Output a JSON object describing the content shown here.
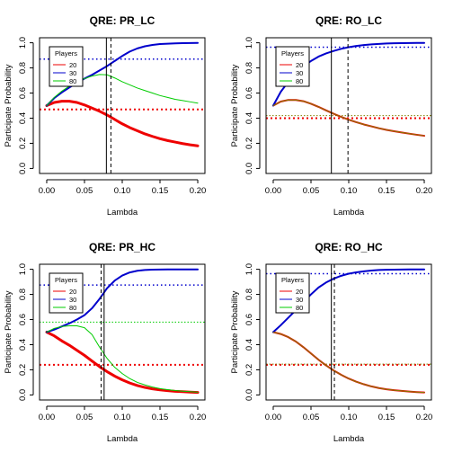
{
  "chart_data": [
    {
      "type": "line",
      "title": "QRE: PR_LC",
      "xlabel": "Lambda",
      "ylabel": "Participate Probability",
      "xlim": [
        -0.0095,
        0.2095
      ],
      "ylim": [
        -0.04,
        1.04
      ],
      "xticks": [
        "0.00",
        "0.05",
        "0.10",
        "0.15",
        "0.20"
      ],
      "yticks": [
        "0.0",
        "0.2",
        "0.4",
        "0.6",
        "0.8",
        "1.0"
      ],
      "legend": {
        "title": "Players",
        "position": "top-left",
        "entries": [
          {
            "label": "20",
            "color": "#ee0000"
          },
          {
            "label": "30",
            "color": "#0000cc"
          },
          {
            "label": "80",
            "color": "#00cc00"
          }
        ]
      },
      "series": [
        {
          "name": "20",
          "color": "#ee0000",
          "width": 3,
          "x": [
            0,
            0.01,
            0.02,
            0.03,
            0.04,
            0.05,
            0.06,
            0.07,
            0.08,
            0.09,
            0.1,
            0.11,
            0.12,
            0.13,
            0.14,
            0.15,
            0.16,
            0.17,
            0.18,
            0.19,
            0.2
          ],
          "y": [
            0.5,
            0.525,
            0.535,
            0.535,
            0.525,
            0.505,
            0.48,
            0.455,
            0.425,
            0.39,
            0.355,
            0.325,
            0.3,
            0.275,
            0.255,
            0.237,
            0.222,
            0.21,
            0.198,
            0.188,
            0.18
          ]
        },
        {
          "name": "30",
          "color": "#0000cc",
          "width": 2,
          "x": [
            0,
            0.01,
            0.02,
            0.03,
            0.04,
            0.05,
            0.06,
            0.07,
            0.08,
            0.09,
            0.1,
            0.11,
            0.12,
            0.13,
            0.14,
            0.15,
            0.16,
            0.17,
            0.18,
            0.19,
            0.2
          ],
          "y": [
            0.5,
            0.56,
            0.605,
            0.645,
            0.68,
            0.715,
            0.745,
            0.78,
            0.815,
            0.855,
            0.895,
            0.93,
            0.955,
            0.972,
            0.983,
            0.99,
            0.993,
            0.995,
            0.997,
            0.998,
            0.999
          ]
        },
        {
          "name": "80",
          "color": "#00cc00",
          "width": 1,
          "x": [
            0,
            0.01,
            0.02,
            0.03,
            0.04,
            0.05,
            0.06,
            0.07,
            0.08,
            0.09,
            0.1,
            0.11,
            0.12,
            0.13,
            0.14,
            0.15,
            0.16,
            0.17,
            0.18,
            0.19,
            0.2
          ],
          "y": [
            0.5,
            0.565,
            0.615,
            0.655,
            0.69,
            0.715,
            0.735,
            0.748,
            0.745,
            0.72,
            0.69,
            0.665,
            0.64,
            0.62,
            0.6,
            0.58,
            0.565,
            0.55,
            0.54,
            0.53,
            0.52
          ]
        }
      ],
      "hlines": [
        {
          "y": 0.47,
          "color": "#ee0000",
          "width": 2,
          "dash": "2,3"
        },
        {
          "y": 0.87,
          "color": "#0000cc",
          "width": 1.5,
          "dash": "1.5,3"
        }
      ],
      "vlines": [
        {
          "x": 0.079,
          "color": "#000000",
          "width": 1,
          "dash": ""
        },
        {
          "x": 0.085,
          "color": "#000000",
          "width": 1,
          "dash": "4,3"
        }
      ]
    },
    {
      "type": "line",
      "title": "QRE: RO_LC",
      "xlabel": "Lambda",
      "ylabel": "Participate Probability",
      "xlim": [
        -0.0095,
        0.2095
      ],
      "ylim": [
        -0.04,
        1.04
      ],
      "xticks": [
        "0.00",
        "0.05",
        "0.10",
        "0.15",
        "0.20"
      ],
      "yticks": [
        "0.0",
        "0.2",
        "0.4",
        "0.6",
        "0.8",
        "1.0"
      ],
      "legend": {
        "title": "Players",
        "position": "top-left",
        "entries": [
          {
            "label": "20",
            "color": "#ee0000"
          },
          {
            "label": "30",
            "color": "#0000cc"
          },
          {
            "label": "80",
            "color": "#00cc00"
          }
        ]
      },
      "series": [
        {
          "name": "20",
          "color": "#ee0000",
          "width": 2,
          "x": [
            0,
            0.01,
            0.02,
            0.03,
            0.04,
            0.05,
            0.06,
            0.07,
            0.08,
            0.09,
            0.1,
            0.11,
            0.12,
            0.13,
            0.14,
            0.15,
            0.16,
            0.17,
            0.18,
            0.19,
            0.2
          ],
          "y": [
            0.5,
            0.532,
            0.545,
            0.545,
            0.535,
            0.515,
            0.49,
            0.462,
            0.435,
            0.41,
            0.388,
            0.368,
            0.35,
            0.335,
            0.32,
            0.307,
            0.296,
            0.286,
            0.277,
            0.268,
            0.26
          ]
        },
        {
          "name": "30",
          "color": "#0000cc",
          "width": 2,
          "x": [
            0,
            0.01,
            0.02,
            0.03,
            0.04,
            0.05,
            0.06,
            0.07,
            0.08,
            0.09,
            0.1,
            0.11,
            0.12,
            0.13,
            0.14,
            0.15,
            0.16,
            0.17,
            0.18,
            0.19,
            0.2
          ],
          "y": [
            0.5,
            0.61,
            0.69,
            0.755,
            0.81,
            0.855,
            0.89,
            0.915,
            0.935,
            0.952,
            0.965,
            0.975,
            0.982,
            0.987,
            0.991,
            0.994,
            0.996,
            0.997,
            0.998,
            0.999,
            0.999
          ]
        },
        {
          "name": "80",
          "color": "#808000",
          "width": 1,
          "x": [
            0,
            0.01,
            0.02,
            0.03,
            0.04,
            0.05,
            0.06,
            0.07,
            0.08,
            0.09,
            0.1,
            0.11,
            0.12,
            0.13,
            0.14,
            0.15,
            0.16,
            0.17,
            0.18,
            0.19,
            0.2
          ],
          "y": [
            0.5,
            0.532,
            0.545,
            0.545,
            0.535,
            0.515,
            0.49,
            0.462,
            0.435,
            0.41,
            0.388,
            0.368,
            0.35,
            0.335,
            0.32,
            0.307,
            0.296,
            0.286,
            0.277,
            0.268,
            0.26
          ]
        }
      ],
      "hlines": [
        {
          "y": 0.4,
          "color": "#ee0000",
          "width": 2,
          "dash": "2,3"
        },
        {
          "y": 0.42,
          "color": "#808000",
          "width": 1,
          "dash": "1.5,2"
        },
        {
          "y": 0.965,
          "color": "#0000cc",
          "width": 1.5,
          "dash": "1.5,3"
        }
      ],
      "vlines": [
        {
          "x": 0.077,
          "color": "#000000",
          "width": 1,
          "dash": ""
        },
        {
          "x": 0.099,
          "color": "#000000",
          "width": 1,
          "dash": "4,3"
        }
      ]
    },
    {
      "type": "line",
      "title": "QRE: PR_HC",
      "xlabel": "Lambda",
      "ylabel": "Participate Probability",
      "xlim": [
        -0.0095,
        0.2095
      ],
      "ylim": [
        -0.04,
        1.04
      ],
      "xticks": [
        "0.00",
        "0.05",
        "0.10",
        "0.15",
        "0.20"
      ],
      "yticks": [
        "0.0",
        "0.2",
        "0.4",
        "0.6",
        "0.8",
        "1.0"
      ],
      "legend": {
        "title": "Players",
        "position": "top-left",
        "entries": [
          {
            "label": "20",
            "color": "#ee0000"
          },
          {
            "label": "30",
            "color": "#0000cc"
          },
          {
            "label": "80",
            "color": "#00cc00"
          }
        ]
      },
      "series": [
        {
          "name": "20",
          "color": "#ee0000",
          "width": 3,
          "x": [
            0,
            0.01,
            0.02,
            0.03,
            0.04,
            0.05,
            0.06,
            0.07,
            0.08,
            0.09,
            0.1,
            0.11,
            0.12,
            0.13,
            0.14,
            0.15,
            0.16,
            0.17,
            0.18,
            0.19,
            0.2
          ],
          "y": [
            0.5,
            0.47,
            0.43,
            0.395,
            0.355,
            0.315,
            0.27,
            0.225,
            0.185,
            0.15,
            0.12,
            0.095,
            0.075,
            0.06,
            0.048,
            0.04,
            0.034,
            0.029,
            0.026,
            0.023,
            0.02
          ]
        },
        {
          "name": "30",
          "color": "#0000cc",
          "width": 2,
          "x": [
            0,
            0.01,
            0.02,
            0.03,
            0.04,
            0.05,
            0.06,
            0.07,
            0.08,
            0.09,
            0.1,
            0.11,
            0.12,
            0.13,
            0.14,
            0.15,
            0.16,
            0.17,
            0.18,
            0.19,
            0.2
          ],
          "y": [
            0.5,
            0.52,
            0.545,
            0.57,
            0.6,
            0.635,
            0.69,
            0.765,
            0.85,
            0.91,
            0.95,
            0.975,
            0.988,
            0.994,
            0.997,
            0.998,
            0.999,
            0.999,
            0.999,
            0.999,
            0.999
          ]
        },
        {
          "name": "80",
          "color": "#00cc00",
          "width": 1,
          "x": [
            0,
            0.01,
            0.02,
            0.03,
            0.04,
            0.05,
            0.06,
            0.07,
            0.08,
            0.09,
            0.1,
            0.11,
            0.12,
            0.13,
            0.14,
            0.15,
            0.16,
            0.17,
            0.18,
            0.19,
            0.2
          ],
          "y": [
            0.5,
            0.53,
            0.545,
            0.55,
            0.55,
            0.535,
            0.48,
            0.38,
            0.29,
            0.22,
            0.17,
            0.13,
            0.1,
            0.08,
            0.063,
            0.05,
            0.042,
            0.035,
            0.03,
            0.026,
            0.022
          ]
        }
      ],
      "hlines": [
        {
          "y": 0.24,
          "color": "#ee0000",
          "width": 2,
          "dash": "2,3"
        },
        {
          "y": 0.58,
          "color": "#00cc00",
          "width": 1,
          "dash": "1.5,2"
        },
        {
          "y": 0.875,
          "color": "#0000cc",
          "width": 1.5,
          "dash": "1.5,3"
        }
      ],
      "vlines": [
        {
          "x": 0.072,
          "color": "#000000",
          "width": 1,
          "dash": "4,3"
        },
        {
          "x": 0.076,
          "color": "#000000",
          "width": 1,
          "dash": ""
        }
      ]
    },
    {
      "type": "line",
      "title": "QRE: RO_HC",
      "xlabel": "Lambda",
      "ylabel": "Participate Probability",
      "xlim": [
        -0.0095,
        0.2095
      ],
      "ylim": [
        -0.04,
        1.04
      ],
      "xticks": [
        "0.00",
        "0.05",
        "0.10",
        "0.15",
        "0.20"
      ],
      "yticks": [
        "0.0",
        "0.2",
        "0.4",
        "0.6",
        "0.8",
        "1.0"
      ],
      "legend": {
        "title": "Players",
        "position": "top-left",
        "entries": [
          {
            "label": "20",
            "color": "#ee0000"
          },
          {
            "label": "30",
            "color": "#0000cc"
          },
          {
            "label": "80",
            "color": "#00cc00"
          }
        ]
      },
      "series": [
        {
          "name": "20",
          "color": "#ee0000",
          "width": 2,
          "x": [
            0,
            0.01,
            0.02,
            0.03,
            0.04,
            0.05,
            0.06,
            0.07,
            0.08,
            0.09,
            0.1,
            0.11,
            0.12,
            0.13,
            0.14,
            0.15,
            0.16,
            0.17,
            0.18,
            0.19,
            0.2
          ],
          "y": [
            0.5,
            0.485,
            0.46,
            0.425,
            0.38,
            0.33,
            0.28,
            0.235,
            0.195,
            0.16,
            0.13,
            0.105,
            0.085,
            0.068,
            0.055,
            0.045,
            0.038,
            0.032,
            0.027,
            0.023,
            0.02
          ]
        },
        {
          "name": "30",
          "color": "#0000cc",
          "width": 2,
          "x": [
            0,
            0.01,
            0.02,
            0.03,
            0.04,
            0.05,
            0.06,
            0.07,
            0.08,
            0.09,
            0.1,
            0.11,
            0.12,
            0.13,
            0.14,
            0.15,
            0.16,
            0.17,
            0.18,
            0.19,
            0.2
          ],
          "y": [
            0.5,
            0.555,
            0.615,
            0.675,
            0.74,
            0.8,
            0.855,
            0.895,
            0.925,
            0.948,
            0.965,
            0.976,
            0.984,
            0.99,
            0.994,
            0.996,
            0.997,
            0.998,
            0.999,
            0.999,
            0.999
          ]
        },
        {
          "name": "80",
          "color": "#808000",
          "width": 1,
          "x": [
            0,
            0.01,
            0.02,
            0.03,
            0.04,
            0.05,
            0.06,
            0.07,
            0.08,
            0.09,
            0.1,
            0.11,
            0.12,
            0.13,
            0.14,
            0.15,
            0.16,
            0.17,
            0.18,
            0.19,
            0.2
          ],
          "y": [
            0.5,
            0.485,
            0.46,
            0.425,
            0.38,
            0.33,
            0.28,
            0.235,
            0.195,
            0.16,
            0.13,
            0.105,
            0.085,
            0.068,
            0.055,
            0.045,
            0.038,
            0.032,
            0.027,
            0.023,
            0.02
          ]
        }
      ],
      "hlines": [
        {
          "y": 0.24,
          "color": "#ee0000",
          "width": 2,
          "dash": "2,3"
        },
        {
          "y": 0.245,
          "color": "#808000",
          "width": 1,
          "dash": "1.5,2"
        },
        {
          "y": 0.965,
          "color": "#0000cc",
          "width": 1.5,
          "dash": "1.5,3"
        }
      ],
      "vlines": [
        {
          "x": 0.077,
          "color": "#000000",
          "width": 1,
          "dash": ""
        },
        {
          "x": 0.081,
          "color": "#000000",
          "width": 1,
          "dash": "4,3"
        }
      ]
    }
  ]
}
